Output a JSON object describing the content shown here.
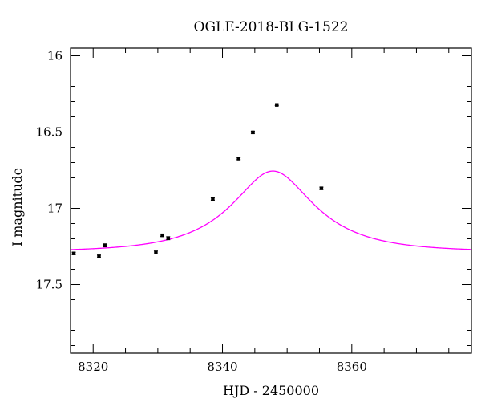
{
  "chart_data": {
    "type": "scatter",
    "title": "OGLE-2018-BLG-1522",
    "xlabel": "HJD - 2450000",
    "ylabel": "I magnitude",
    "xlim": [
      8316.5,
      8378.5
    ],
    "ylim": [
      15.95,
      17.95
    ],
    "y_inverted": true,
    "x_ticks": [
      8320,
      8340,
      8360
    ],
    "y_ticks": [
      16,
      16.5,
      17,
      17.5
    ],
    "x_tick_labels": [
      "8320",
      "8340",
      "8360"
    ],
    "y_tick_labels": [
      "16",
      "16.5",
      "17",
      "17.5"
    ],
    "grid": false,
    "series": [
      {
        "kind": "points",
        "color": "#000000",
        "x": [
          8317.0,
          8320.9,
          8321.8,
          8329.7,
          8330.7,
          8331.6,
          8338.5,
          8342.5,
          8344.7,
          8348.4,
          8355.3
        ],
        "y": [
          17.296,
          17.315,
          17.243,
          17.29,
          17.177,
          17.196,
          16.939,
          16.674,
          16.502,
          16.322,
          16.869
        ],
        "yerr": [
          0.008,
          0.008,
          0.01,
          0.01,
          0.008,
          0.01,
          0.008,
          0.007,
          0.007,
          0.005,
          0.008
        ]
      },
      {
        "kind": "model",
        "color": "#ff00ff",
        "model": {
          "t0": 8347.8,
          "tE": 12.0,
          "u0": 0.49,
          "fs": 0.515,
          "I_base": 17.285
        }
      }
    ]
  }
}
